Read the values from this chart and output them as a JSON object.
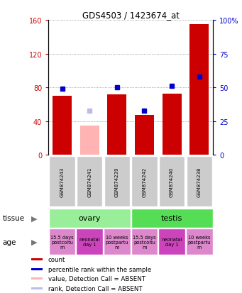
{
  "title": "GDS4503 / 1423674_at",
  "samples": [
    "GSM874243",
    "GSM874241",
    "GSM874239",
    "GSM874242",
    "GSM874240",
    "GSM874238"
  ],
  "bar_values": [
    70,
    null,
    72,
    47,
    73,
    155
  ],
  "bar_absent_values": [
    null,
    35,
    null,
    null,
    null,
    null
  ],
  "bar_color_present": "#cc0000",
  "bar_color_absent": "#ffb3b3",
  "rank_values": [
    49,
    null,
    50,
    33,
    51,
    58
  ],
  "rank_absent_values": [
    null,
    33,
    null,
    null,
    null,
    null
  ],
  "rank_color_present": "#0000cc",
  "rank_color_absent": "#bbbbee",
  "ylim_left": [
    0,
    160
  ],
  "ylim_right": [
    0,
    100
  ],
  "left_ticks": [
    0,
    40,
    80,
    120,
    160
  ],
  "right_ticks": [
    0,
    25,
    50,
    75,
    100
  ],
  "left_tick_labels": [
    "0",
    "40",
    "80",
    "120",
    "160"
  ],
  "right_tick_labels": [
    "0",
    "25",
    "50",
    "75",
    "100%"
  ],
  "tissue_groups": [
    {
      "label": "ovary",
      "span": [
        0,
        3
      ],
      "color": "#99ee99"
    },
    {
      "label": "testis",
      "span": [
        3,
        6
      ],
      "color": "#55dd55"
    }
  ],
  "age_labels": [
    {
      "label": "15.5 days\npostcoitu\nm",
      "color": "#dd88cc"
    },
    {
      "label": "neonatal\nday 1",
      "color": "#cc44bb"
    },
    {
      "label": "10 weeks\npostpartu\nm",
      "color": "#dd88cc"
    },
    {
      "label": "15.5 days\npostcoitu\nm",
      "color": "#dd88cc"
    },
    {
      "label": "neonatal\nday 1",
      "color": "#cc44bb"
    },
    {
      "label": "10 weeks\npostpartu\nm",
      "color": "#dd88cc"
    }
  ],
  "legend_items": [
    {
      "color": "#cc0000",
      "label": "count"
    },
    {
      "color": "#0000cc",
      "label": "percentile rank within the sample"
    },
    {
      "color": "#ffb3b3",
      "label": "value, Detection Call = ABSENT"
    },
    {
      "color": "#bbbbee",
      "label": "rank, Detection Call = ABSENT"
    }
  ],
  "bar_width": 0.7,
  "grid_color": "#888888",
  "sample_box_color": "#cccccc"
}
